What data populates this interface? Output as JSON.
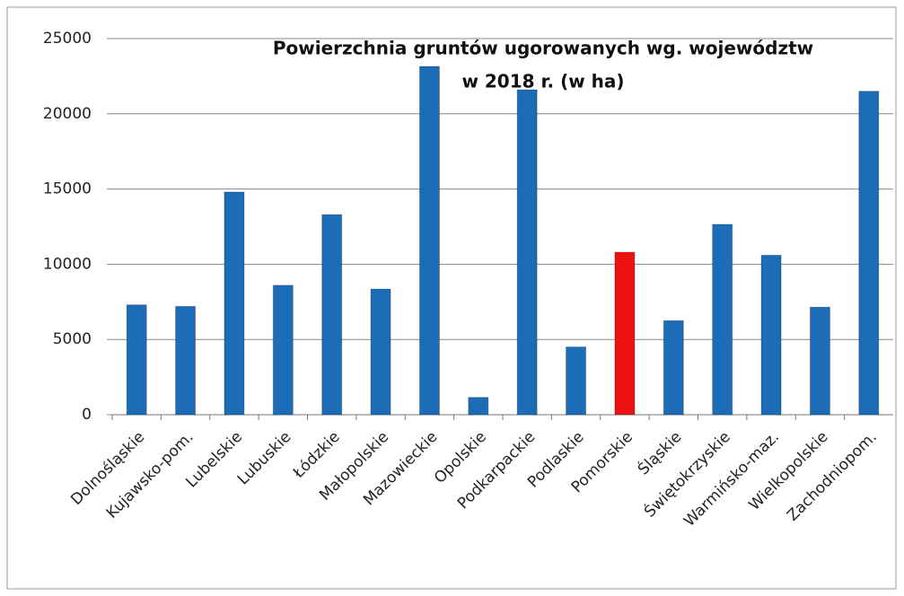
{
  "chart_data": {
    "type": "bar",
    "title": [
      "Powierzchnia gruntów ugorowanych wg. województw",
      "w 2018 r. (w ha)"
    ],
    "categories": [
      "Dolnośląskie",
      "Kujawsko-pom.",
      "Lubelskie",
      "Lubuskie",
      "Łódzkie",
      "Małopolskie",
      "Mazowieckie",
      "Opolskie",
      "Podkarpackie",
      "Podlaskie",
      "Pomorskie",
      "Śląskie",
      "Świętokrzyskie",
      "Warmińsko-maz.",
      "Wielkopolskie",
      "Zachodniopom."
    ],
    "values": [
      7300,
      7200,
      14800,
      8600,
      13300,
      8350,
      23150,
      1150,
      21600,
      4500,
      10800,
      6250,
      12650,
      10600,
      7150,
      21500
    ],
    "colors": [
      "#1c6cb8",
      "#1c6cb8",
      "#1c6cb8",
      "#1c6cb8",
      "#1c6cb8",
      "#1c6cb8",
      "#1c6cb8",
      "#1c6cb8",
      "#1c6cb8",
      "#1c6cb8",
      "#ee1111",
      "#1c6cb8",
      "#1c6cb8",
      "#1c6cb8",
      "#1c6cb8",
      "#1c6cb8"
    ],
    "ylim": [
      0,
      25000
    ],
    "yticks": [
      0,
      5000,
      10000,
      15000,
      20000,
      25000
    ],
    "grid": true
  }
}
